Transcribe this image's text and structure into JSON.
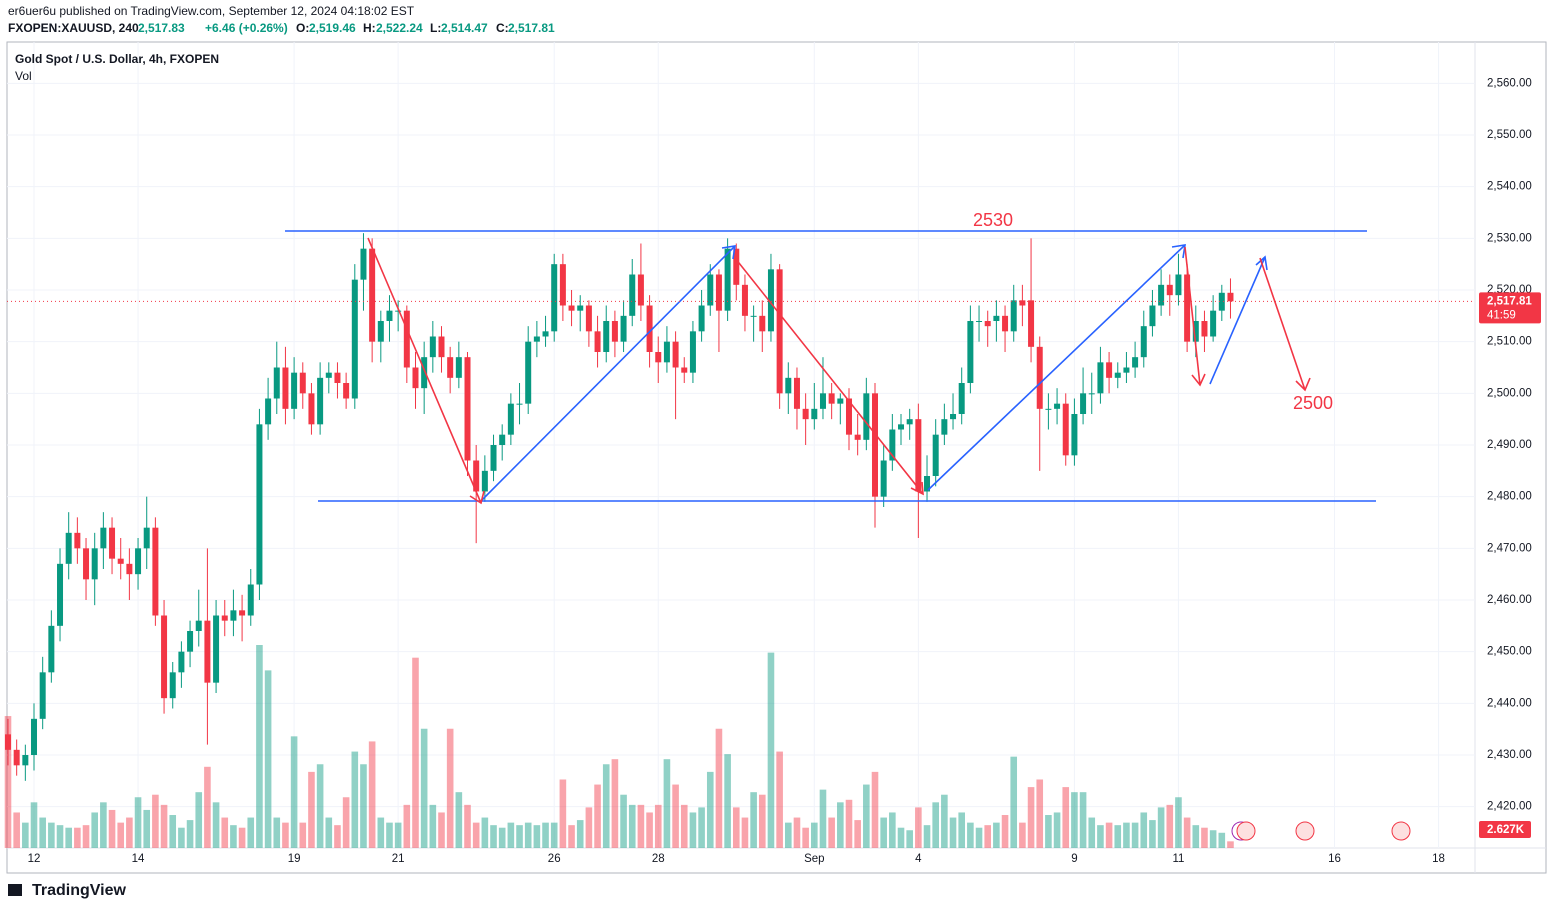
{
  "header": {
    "published": "er6uer6u published on TradingView.com, September 12, 2024 04:18:02 EST",
    "symbol": "FXOPEN:XAUUSD, 240",
    "last": "2,517.83",
    "change": "+6.46 (+0.26%)",
    "o_label": "O:",
    "o": "2,519.46",
    "h_label": "H:",
    "h": "2,522.24",
    "l_label": "L:",
    "l": "2,514.47",
    "c_label": "C:",
    "c": "2,517.81"
  },
  "footer": {
    "brand": "TradingView"
  },
  "chart_data": {
    "type": "candlestick",
    "title": "Gold Spot / U.S. Dollar, 4h, FXOPEN",
    "volume_title": "Vol",
    "annotations": [
      "2530",
      "2500"
    ],
    "up_color": "#089981",
    "down_color": "#f23645",
    "grid": true,
    "ylim": [
      2412,
      2568
    ],
    "yticks": [
      {
        "value": 2420,
        "label": "2,420.00"
      },
      {
        "value": 2430,
        "label": "2,430.00"
      },
      {
        "value": 2440,
        "label": "2,440.00"
      },
      {
        "value": 2450,
        "label": "2,450.00"
      },
      {
        "value": 2460,
        "label": "2,460.00"
      },
      {
        "value": 2470,
        "label": "2,470.00"
      },
      {
        "value": 2480,
        "label": "2,480.00"
      },
      {
        "value": 2490,
        "label": "2,490.00"
      },
      {
        "value": 2500,
        "label": "2,500.00"
      },
      {
        "value": 2510,
        "label": "2,510.00"
      },
      {
        "value": 2520,
        "label": "2,520.00"
      },
      {
        "value": 2530,
        "label": "2,530.00"
      },
      {
        "value": 2540,
        "label": "2,540.00"
      },
      {
        "value": 2550,
        "label": "2,550.00"
      },
      {
        "value": 2560,
        "label": "2,560.00"
      }
    ],
    "vlim": [
      0,
      80
    ],
    "last_price": {
      "value": 2517.81,
      "label": "2,517.81"
    },
    "countdown": "41:59",
    "last_volume_label": "2.627K",
    "categories": [
      null,
      null,
      null,
      "12",
      null,
      null,
      null,
      null,
      null,
      null,
      null,
      null,
      null,
      null,
      null,
      "14",
      null,
      null,
      null,
      null,
      null,
      null,
      null,
      null,
      null,
      null,
      null,
      null,
      null,
      null,
      null,
      null,
      null,
      "19",
      null,
      null,
      null,
      null,
      null,
      null,
      null,
      null,
      null,
      null,
      null,
      "21",
      null,
      null,
      null,
      null,
      null,
      null,
      null,
      null,
      null,
      null,
      null,
      null,
      null,
      null,
      null,
      null,
      null,
      "26",
      null,
      null,
      null,
      null,
      null,
      null,
      null,
      null,
      null,
      null,
      null,
      "28",
      null,
      null,
      null,
      null,
      null,
      null,
      null,
      null,
      null,
      null,
      null,
      null,
      null,
      null,
      null,
      null,
      null,
      "Sep",
      null,
      null,
      null,
      null,
      null,
      null,
      null,
      null,
      null,
      null,
      null,
      "4",
      null,
      null,
      null,
      null,
      null,
      null,
      null,
      null,
      null,
      null,
      null,
      null,
      null,
      null,
      null,
      null,
      null,
      "9",
      null,
      null,
      null,
      null,
      null,
      null,
      null,
      null,
      null,
      null,
      null,
      "11",
      null,
      null,
      null,
      null,
      null,
      null,
      null,
      null,
      null,
      null,
      null,
      null,
      null,
      null,
      null,
      null,
      null,
      "16",
      null,
      null,
      null,
      null,
      null,
      null,
      null,
      null,
      null,
      null,
      null,
      "18",
      null,
      null
    ],
    "candles": [
      [
        2434,
        2437,
        2428,
        2431,
        52
      ],
      [
        2431,
        2433,
        2426,
        2428,
        14
      ],
      [
        2428,
        2432,
        2425,
        2430,
        10
      ],
      [
        2430,
        2440,
        2427,
        2437,
        18
      ],
      [
        2437,
        2449,
        2435,
        2446,
        12
      ],
      [
        2446,
        2458,
        2444,
        2455,
        10
      ],
      [
        2455,
        2470,
        2452,
        2467,
        9
      ],
      [
        2467,
        2477,
        2464,
        2473,
        8
      ],
      [
        2473,
        2476,
        2467,
        2470,
        8
      ],
      [
        2470,
        2472,
        2460,
        2464,
        9
      ],
      [
        2464,
        2473,
        2459,
        2470,
        14
      ],
      [
        2470,
        2477,
        2466,
        2474,
        18
      ],
      [
        2474,
        2476,
        2465,
        2468,
        15
      ],
      [
        2468,
        2472,
        2464,
        2467,
        10
      ],
      [
        2467,
        2470,
        2460,
        2465,
        12
      ],
      [
        2465,
        2472,
        2462,
        2470,
        20
      ],
      [
        2470,
        2480,
        2466,
        2474,
        15
      ],
      [
        2474,
        2476,
        2455,
        2457,
        21
      ],
      [
        2457,
        2460,
        2438,
        2441,
        17
      ],
      [
        2441,
        2448,
        2439,
        2446,
        13
      ],
      [
        2446,
        2452,
        2443,
        2450,
        8
      ],
      [
        2450,
        2456,
        2447,
        2454,
        11
      ],
      [
        2454,
        2462,
        2451,
        2456,
        22
      ],
      [
        2456,
        2470,
        2432,
        2444,
        32
      ],
      [
        2444,
        2460,
        2442,
        2457,
        18
      ],
      [
        2457,
        2460,
        2453,
        2456,
        12
      ],
      [
        2456,
        2462,
        2453,
        2458,
        9
      ],
      [
        2458,
        2461,
        2452,
        2457,
        8
      ],
      [
        2457,
        2466,
        2455,
        2463,
        12
      ],
      [
        2463,
        2497,
        2460,
        2494,
        80
      ],
      [
        2494,
        2503,
        2491,
        2499,
        70
      ],
      [
        2499,
        2510,
        2496,
        2505,
        12
      ],
      [
        2505,
        2509,
        2494,
        2497,
        10
      ],
      [
        2497,
        2507,
        2495,
        2504,
        44
      ],
      [
        2504,
        2506,
        2497,
        2500,
        10
      ],
      [
        2500,
        2502,
        2492,
        2494,
        30
      ],
      [
        2494,
        2506,
        2492,
        2503,
        33
      ],
      [
        2503,
        2506,
        2500,
        2504,
        12
      ],
      [
        2504,
        2506,
        2499,
        2502,
        9
      ],
      [
        2502,
        2504,
        2497,
        2499,
        20
      ],
      [
        2499,
        2525,
        2497,
        2522,
        38
      ],
      [
        2522,
        2531,
        2516,
        2528,
        33
      ],
      [
        2528,
        2530,
        2506,
        2510,
        42
      ],
      [
        2510,
        2516,
        2506,
        2514,
        12
      ],
      [
        2514,
        2519,
        2510,
        2516,
        10
      ],
      [
        2516,
        2518,
        2512,
        2516,
        10
      ],
      [
        2516,
        2517,
        2502,
        2505,
        17
      ],
      [
        2505,
        2508,
        2497,
        2501,
        75
      ],
      [
        2501,
        2510,
        2496,
        2507,
        47
      ],
      [
        2507,
        2514,
        2504,
        2511,
        17
      ],
      [
        2511,
        2513,
        2504,
        2507,
        14
      ],
      [
        2507,
        2509,
        2500,
        2503,
        47
      ],
      [
        2503,
        2510,
        2501,
        2507,
        22
      ],
      [
        2507,
        2508,
        2484,
        2487,
        17
      ],
      [
        2487,
        2490,
        2471,
        2481,
        10
      ],
      [
        2481,
        2488,
        2479,
        2485,
        12
      ],
      [
        2485,
        2492,
        2483,
        2490,
        9
      ],
      [
        2490,
        2494,
        2487,
        2492,
        8
      ],
      [
        2492,
        2500,
        2490,
        2498,
        10
      ],
      [
        2498,
        2502,
        2494,
        2498,
        9
      ],
      [
        2498,
        2513,
        2496,
        2510,
        10
      ],
      [
        2510,
        2514,
        2507,
        2511,
        9
      ],
      [
        2511,
        2515,
        2509,
        2512,
        10
      ],
      [
        2512,
        2527,
        2510,
        2525,
        10
      ],
      [
        2525,
        2527,
        2514,
        2517,
        27
      ],
      [
        2517,
        2520,
        2513,
        2516,
        9
      ],
      [
        2516,
        2519,
        2512,
        2517,
        11
      ],
      [
        2517,
        2518,
        2509,
        2512,
        16
      ],
      [
        2512,
        2515,
        2505,
        2508,
        25
      ],
      [
        2508,
        2517,
        2506,
        2514,
        33
      ],
      [
        2514,
        2516,
        2507,
        2510,
        35
      ],
      [
        2510,
        2518,
        2508,
        2515,
        21
      ],
      [
        2515,
        2526,
        2513,
        2523,
        17
      ],
      [
        2523,
        2529,
        2514,
        2517,
        17
      ],
      [
        2517,
        2519,
        2505,
        2508,
        14
      ],
      [
        2508,
        2511,
        2502,
        2506,
        17
      ],
      [
        2506,
        2513,
        2504,
        2510,
        35
      ],
      [
        2510,
        2512,
        2495,
        2505,
        25
      ],
      [
        2505,
        2507,
        2502,
        2504,
        17
      ],
      [
        2504,
        2514,
        2502,
        2512,
        14
      ],
      [
        2512,
        2520,
        2510,
        2517,
        16
      ],
      [
        2517,
        2525,
        2515,
        2523,
        30
      ],
      [
        2523,
        2524,
        2508,
        2516,
        47
      ],
      [
        2516,
        2530,
        2514,
        2528,
        37
      ],
      [
        2528,
        2529,
        2518,
        2521,
        16
      ],
      [
        2521,
        2523,
        2512,
        2515,
        12
      ],
      [
        2515,
        2517,
        2510,
        2515,
        22
      ],
      [
        2515,
        2518,
        2508,
        2512,
        21
      ],
      [
        2512,
        2527,
        2510,
        2524,
        77
      ],
      [
        2524,
        2525,
        2497,
        2500,
        38
      ],
      [
        2500,
        2506,
        2496,
        2503,
        10
      ],
      [
        2503,
        2505,
        2493,
        2497,
        12
      ],
      [
        2497,
        2500,
        2490,
        2495,
        8
      ],
      [
        2495,
        2502,
        2493,
        2497,
        10
      ],
      [
        2497,
        2507,
        2495,
        2500,
        23
      ],
      [
        2500,
        2502,
        2495,
        2498,
        12
      ],
      [
        2498,
        2500,
        2494,
        2499,
        18
      ],
      [
        2499,
        2501,
        2489,
        2492,
        19
      ],
      [
        2492,
        2496,
        2488,
        2491,
        11
      ],
      [
        2491,
        2503,
        2489,
        2500,
        25
      ],
      [
        2500,
        2502,
        2474,
        2480,
        30
      ],
      [
        2480,
        2490,
        2478,
        2487,
        12
      ],
      [
        2487,
        2496,
        2485,
        2493,
        14
      ],
      [
        2493,
        2496,
        2490,
        2494,
        8
      ],
      [
        2494,
        2497,
        2491,
        2495,
        7
      ],
      [
        2495,
        2498,
        2472,
        2481,
        16
      ],
      [
        2481,
        2488,
        2479,
        2484,
        9
      ],
      [
        2484,
        2495,
        2482,
        2492,
        18
      ],
      [
        2492,
        2498,
        2490,
        2495,
        21
      ],
      [
        2495,
        2500,
        2493,
        2496,
        12
      ],
      [
        2496,
        2505,
        2494,
        2502,
        14
      ],
      [
        2502,
        2517,
        2500,
        2514,
        10
      ],
      [
        2514,
        2517,
        2510,
        2514,
        8
      ],
      [
        2514,
        2516,
        2509,
        2513,
        9
      ],
      [
        2514,
        2518,
        2510,
        2515,
        10
      ],
      [
        2515,
        2517,
        2508,
        2512,
        13
      ],
      [
        2512,
        2521,
        2510,
        2518,
        36
      ],
      [
        2518,
        2521,
        2513,
        2517,
        10
      ],
      [
        2518,
        2530,
        2506,
        2509,
        24
      ],
      [
        2509,
        2511,
        2485,
        2497,
        27
      ],
      [
        2497,
        2500,
        2493,
        2497,
        13
      ],
      [
        2497,
        2501,
        2494,
        2498,
        14
      ],
      [
        2498,
        2500,
        2486,
        2488,
        24
      ],
      [
        2488,
        2499,
        2486,
        2496,
        22
      ],
      [
        2496,
        2505,
        2494,
        2500,
        22
      ],
      [
        2500,
        2504,
        2496,
        2500,
        12
      ],
      [
        2500,
        2509,
        2498,
        2506,
        9
      ],
      [
        2506,
        2508,
        2500,
        2503,
        10
      ],
      [
        2503,
        2506,
        2501,
        2504,
        9
      ],
      [
        2504,
        2508,
        2502,
        2505,
        10
      ],
      [
        2505,
        2510,
        2503,
        2507,
        10
      ],
      [
        2507,
        2516,
        2505,
        2513,
        14
      ],
      [
        2513,
        2520,
        2511,
        2517,
        11
      ],
      [
        2517,
        2524,
        2515,
        2521,
        16
      ],
      [
        2521,
        2523,
        2515,
        2519,
        17
      ],
      [
        2519,
        2527,
        2517,
        2523,
        20
      ],
      [
        2523,
        2525,
        2508,
        2510,
        12
      ],
      [
        2510,
        2517,
        2507,
        2514,
        9
      ],
      [
        2514,
        2516,
        2508,
        2511,
        8
      ],
      [
        2511,
        2519,
        2510,
        2516,
        7
      ],
      [
        2516,
        2521,
        2514,
        2519.46,
        6
      ],
      [
        2519.46,
        2522.24,
        2514.47,
        2517.81,
        2.627
      ],
      null,
      null,
      null,
      null,
      null,
      null,
      null,
      null,
      null,
      null,
      null,
      null,
      null,
      null,
      null,
      null,
      null,
      null,
      null,
      null,
      null,
      null,
      null,
      null,
      null,
      null
    ]
  }
}
